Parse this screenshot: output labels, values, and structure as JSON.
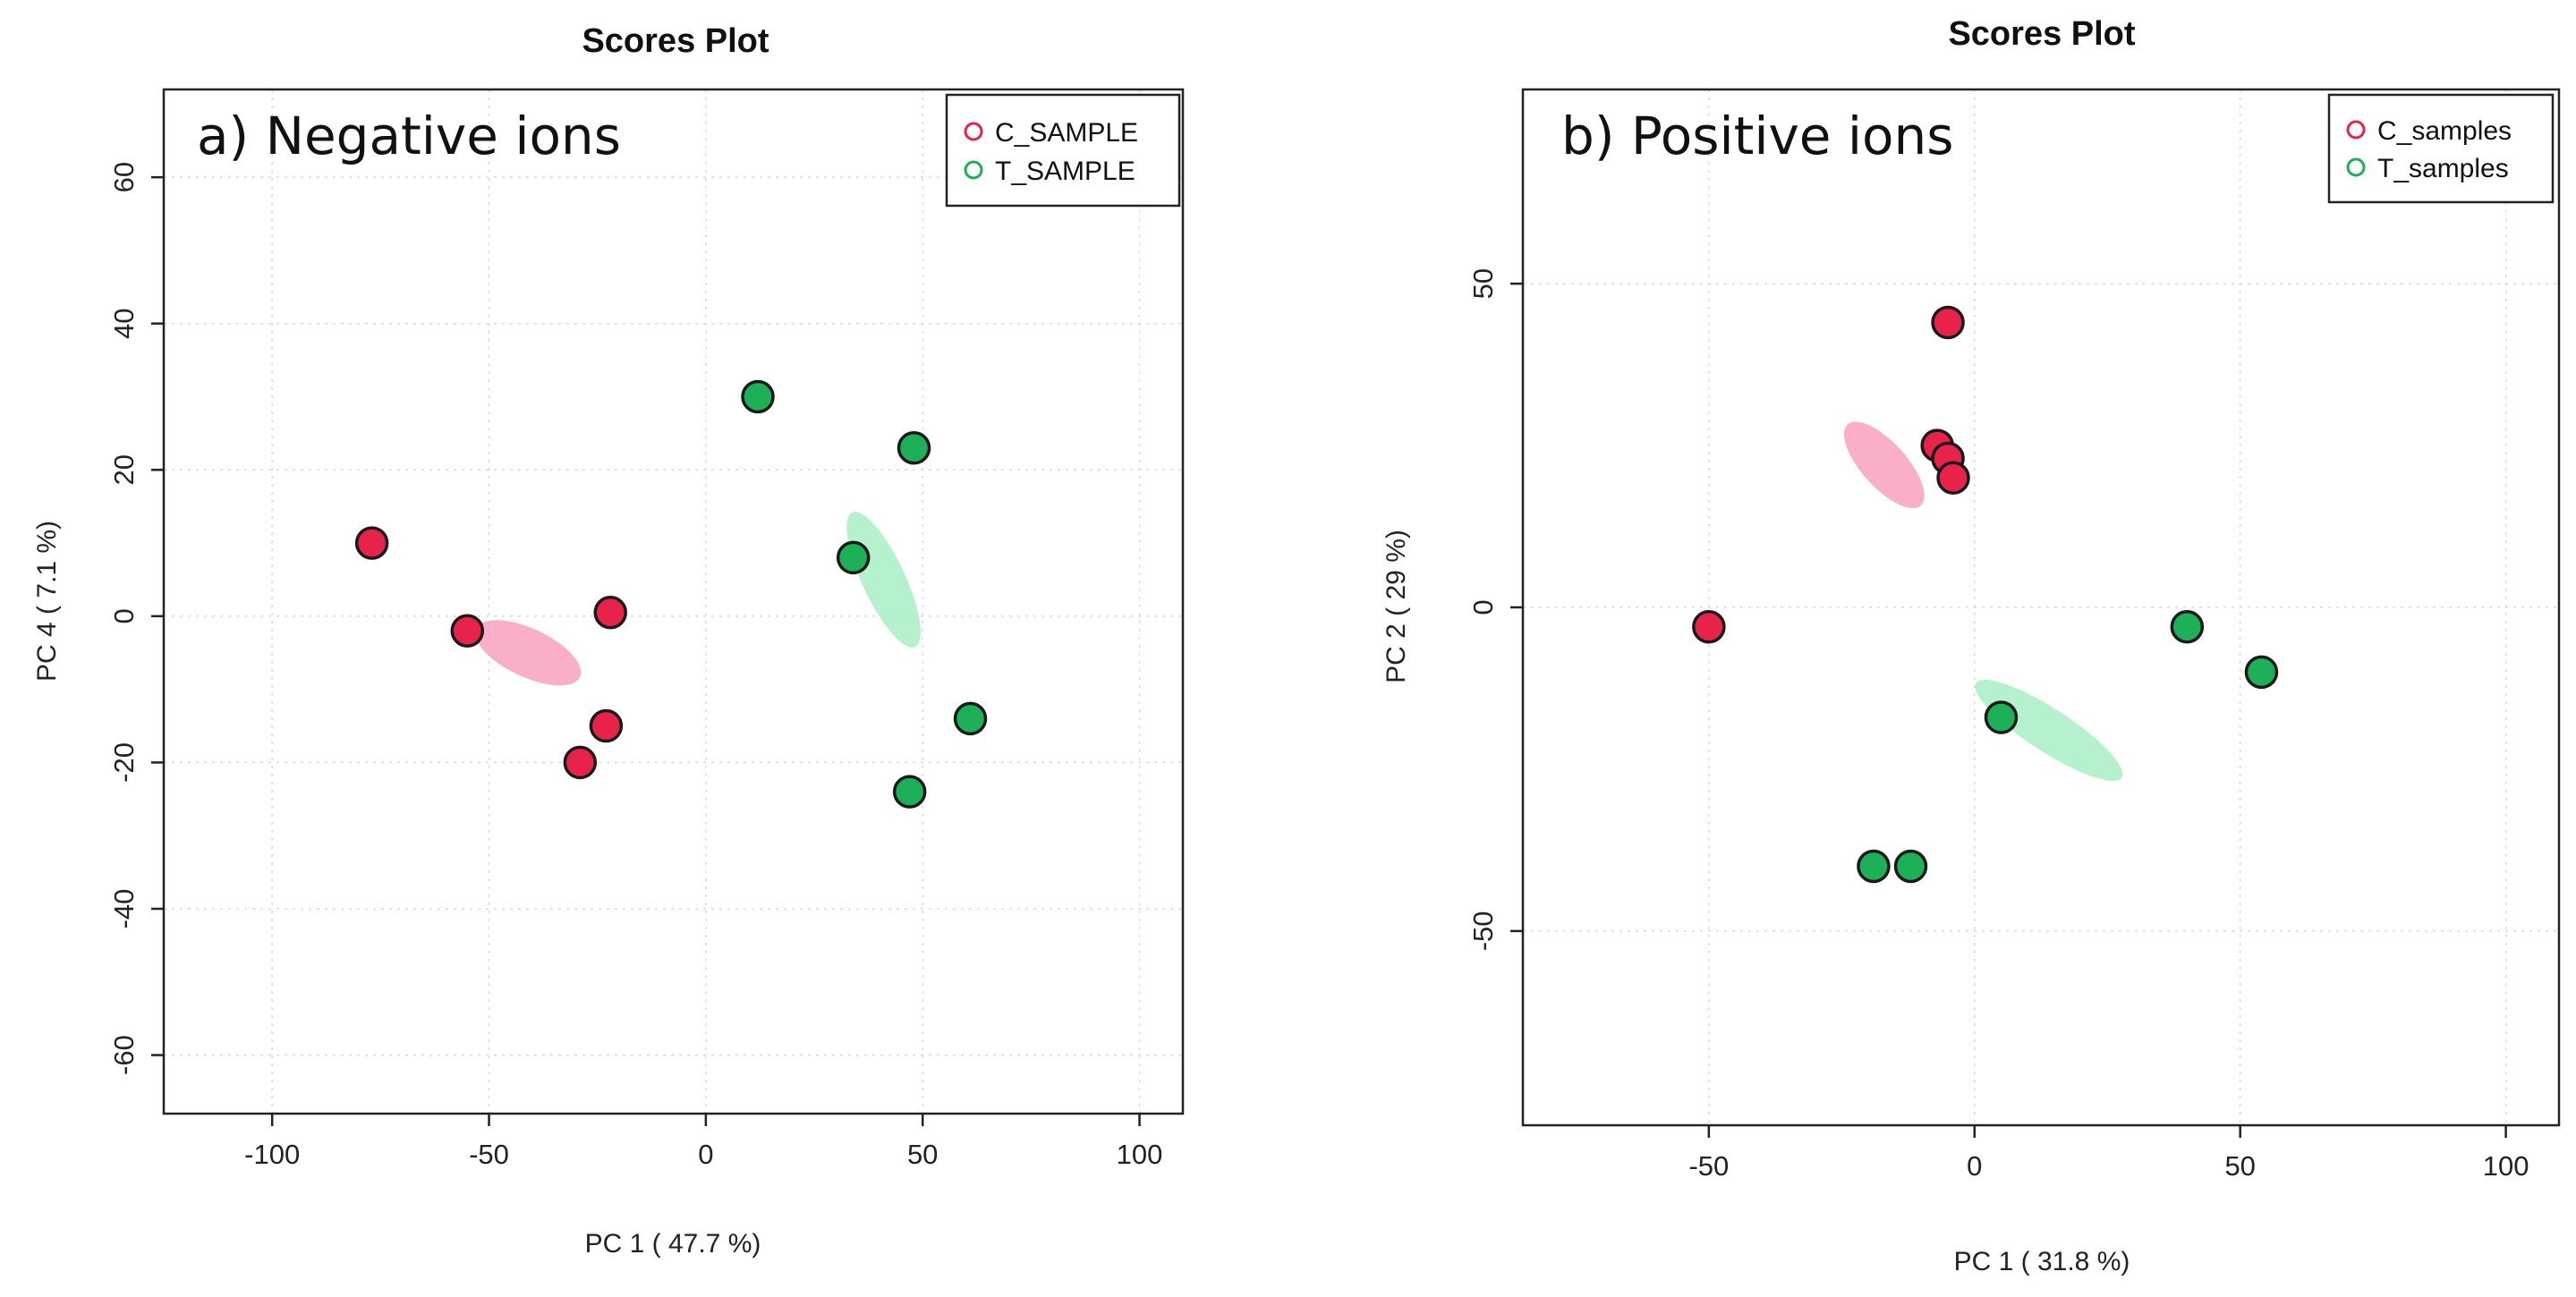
{
  "chart_data": [
    {
      "type": "scatter",
      "title": "Scores Plot",
      "panel_label": "a) Negative ions",
      "xlabel": "PC 1 ( 47.7 %)",
      "ylabel": "PC 4 ( 7.1 %)",
      "xlim": [
        -125,
        110
      ],
      "ylim": [
        -68,
        72
      ],
      "xticks": [
        -100,
        -50,
        0,
        50,
        100
      ],
      "yticks": [
        -60,
        -40,
        -20,
        0,
        20,
        40,
        60
      ],
      "grid": true,
      "legend_position": "top-right",
      "series": [
        {
          "name": "C_SAMPLE",
          "color": "#e8234a",
          "ellipse_color": "#f7a1bd",
          "points": [
            {
              "x": -77,
              "y": 10
            },
            {
              "x": -55,
              "y": -2
            },
            {
              "x": -22,
              "y": 0.5
            },
            {
              "x": -23,
              "y": -15
            },
            {
              "x": -29,
              "y": -20
            }
          ],
          "ellipse": {
            "cx": -41,
            "cy": -5,
            "rx": 64,
            "ry": 27,
            "angle": -25
          }
        },
        {
          "name": "T_SAMPLE",
          "color": "#1db056",
          "ellipse_color": "#a8efc4",
          "points": [
            {
              "x": 12,
              "y": 30
            },
            {
              "x": 48,
              "y": 23
            },
            {
              "x": 34,
              "y": 8
            },
            {
              "x": 61,
              "y": -14
            },
            {
              "x": 47,
              "y": -24
            }
          ],
          "ellipse": {
            "cx": 41,
            "cy": 5,
            "rx": 24,
            "ry": 83,
            "angle": 25
          }
        }
      ]
    },
    {
      "type": "scatter",
      "title": "Scores Plot",
      "panel_label": "b) Positive ions",
      "xlabel": "PC 1 ( 31.8 %)",
      "ylabel": "PC 2 ( 29 %)",
      "xlim": [
        -85,
        110
      ],
      "ylim": [
        -80,
        80
      ],
      "xticks": [
        -50,
        0,
        50,
        100
      ],
      "yticks": [
        -50,
        0,
        50
      ],
      "grid": true,
      "legend_position": "top-right",
      "series": [
        {
          "name": "C_samples",
          "color": "#e8234a",
          "ellipse_color": "#f7a1bd",
          "points": [
            {
              "x": -5,
              "y": 44
            },
            {
              "x": -7,
              "y": 25
            },
            {
              "x": -5,
              "y": 23
            },
            {
              "x": -4,
              "y": 20
            },
            {
              "x": -50,
              "y": -3
            }
          ],
          "ellipse": {
            "cx": -17,
            "cy": 22,
            "rx": 61,
            "ry": 25,
            "angle": -48
          }
        },
        {
          "name": "T_samples",
          "color": "#1db056",
          "ellipse_color": "#a8efc4",
          "points": [
            {
              "x": 40,
              "y": -3
            },
            {
              "x": 54,
              "y": -10
            },
            {
              "x": 5,
              "y": -17
            },
            {
              "x": -19,
              "y": -40
            },
            {
              "x": -12,
              "y": -40
            }
          ],
          "ellipse": {
            "cx": 14,
            "cy": -19,
            "rx": 97,
            "ry": 24,
            "angle": -33
          }
        }
      ]
    }
  ]
}
